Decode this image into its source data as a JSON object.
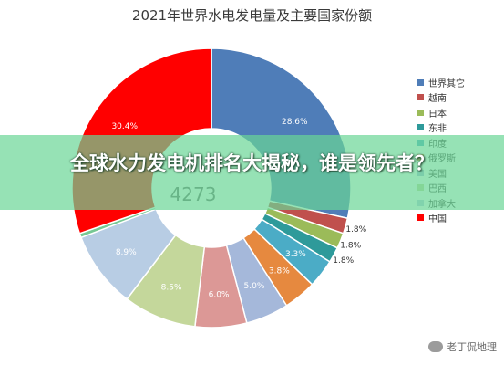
{
  "page": {
    "background": "#ffffff"
  },
  "banner": {
    "headline": "全球水力发电机排名大揭秘，谁是领先者？",
    "color": "#69d696"
  },
  "watermark": {
    "text": "老丁侃地理",
    "icon": "wechat-icon"
  },
  "chart_data": {
    "type": "pie",
    "title": "2021年世界水电发电量及主要国家份额",
    "donut": true,
    "center_text": "4273",
    "legend_position": "right",
    "start_angle": "top, clockwise",
    "slices": [
      {
        "label": "世界其它",
        "value": 28.6,
        "text": "28.6%",
        "color": "#4f7db8"
      },
      {
        "label": "越南",
        "value": 1.8,
        "text": "1.8%",
        "color": "#c0504d"
      },
      {
        "label": "日本",
        "value": 1.8,
        "text": "1.8%",
        "color": "#9bbb59"
      },
      {
        "label": "东非",
        "value": 1.8,
        "text": "1.8%",
        "color": "#2e9a9a"
      },
      {
        "label": "印度",
        "value": 3.3,
        "text": "3.3%",
        "color": "#4bacc6"
      },
      {
        "label": "俄罗斯",
        "value": 3.8,
        "text": "3.8%",
        "color": "#e6893f"
      },
      {
        "label": "美国",
        "value": 5.0,
        "text": "5.0%",
        "color": "#a5b8da"
      },
      {
        "label": "巴西",
        "value": 6.0,
        "text": "6.0%",
        "color": "#dc9896"
      },
      {
        "label": "加拿大",
        "value": 8.5,
        "text": "8.5%",
        "color": "#c4d79b"
      },
      {
        "label": "中国",
        "value": 8.9,
        "text": "8.9%",
        "color": "#b8cde4"
      },
      {
        "label": "",
        "value": 0.5,
        "text": "",
        "color": "#76c893"
      },
      {
        "label": "",
        "value": 30.4,
        "text": "30.4%",
        "color": "#ff0000"
      }
    ],
    "legend": [
      {
        "label": "世界其它",
        "color": "#4f7db8"
      },
      {
        "label": "越南",
        "color": "#c0504d"
      },
      {
        "label": "日本",
        "color": "#9bbb59"
      },
      {
        "label": "东非",
        "color": "#2e9a9a"
      },
      {
        "label": "印度",
        "color": "#4bacc6"
      },
      {
        "label": "俄罗斯",
        "color": "#e6893f"
      },
      {
        "label": "美国",
        "color": "#a5b8da"
      },
      {
        "label": "巴西",
        "color": "#c4d79b"
      },
      {
        "label": "加拿大",
        "color": "#b8cde4"
      },
      {
        "label": "中国",
        "color": "#ff0000"
      }
    ]
  }
}
